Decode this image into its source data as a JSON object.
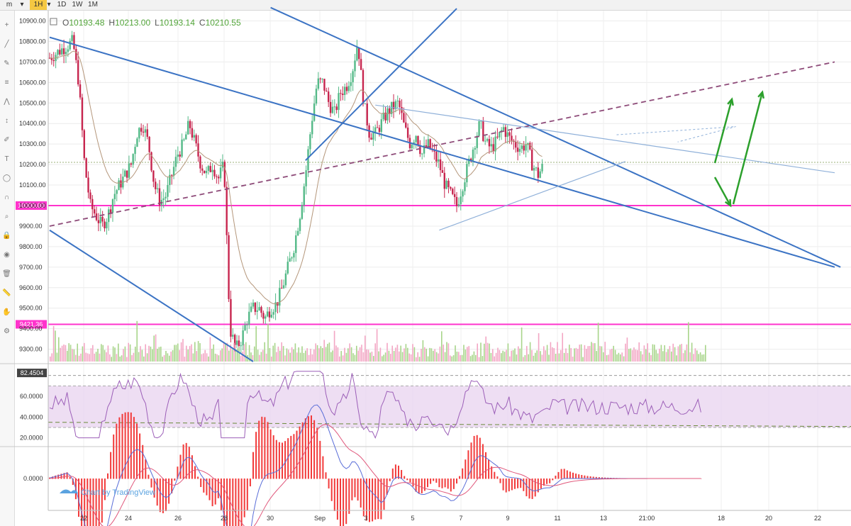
{
  "timeframes": [
    {
      "label": "m",
      "active": false
    },
    {
      "label": "1H",
      "active": true
    },
    {
      "label": "1D",
      "active": false
    },
    {
      "label": "1W",
      "active": false
    },
    {
      "label": "1M",
      "active": false
    }
  ],
  "toolbar_icons": [
    "crosshair-icon",
    "trendline-icon",
    "pencil-icon",
    "fibonacci-icon",
    "pattern-icon",
    "measure-icon",
    "brush-icon",
    "text-icon",
    "shapes-icon",
    "magnet-icon",
    "zoom-icon",
    "lock-icon",
    "eye-icon",
    "trash-icon",
    "ruler-icon",
    "hand-icon",
    "settings-icon"
  ],
  "ohlc": {
    "o_label": "O",
    "o_value": "10193.48",
    "h_label": "H",
    "h_value": "10213.00",
    "l_label": "L",
    "l_value": "10193.14",
    "c_label": "C",
    "c_value": "10210.55"
  },
  "watermark": "Chart by TradingView",
  "colors": {
    "bull": "#53b987",
    "bear": "#c7254e",
    "trend": "#3b73c4",
    "level": "#ff33cc",
    "rsi": "#9c5fb8",
    "rsi_band": "#ead6f0",
    "macd_hist": "#f23a3a",
    "arrow": "#2ca02c",
    "ma": "#b4967a",
    "dashed_trend": "#8e4b79"
  },
  "chart_data": {
    "type": "line",
    "description_series": "BTC/USD hourly candlesticks",
    "price_axis": {
      "ticks": [
        "10900.00",
        "10800.00",
        "10700.00",
        "10600.00",
        "10500.00",
        "10400.00",
        "10300.00",
        "10200.00",
        "10100.00",
        "10000.00",
        "9900.00",
        "9800.00",
        "9700.00",
        "9600.00",
        "9500.00",
        "9400.00",
        "9300.00"
      ],
      "range": [
        9240,
        10950
      ]
    },
    "x_ticks": [
      "22",
      "24",
      "26",
      "28",
      "30",
      "Sep",
      "3",
      "5",
      "7",
      "9",
      "11",
      "13",
      "21:00",
      "18",
      "20",
      "22"
    ],
    "levels": [
      {
        "label": "10000.00",
        "price": 10000
      },
      {
        "label": "9421.36",
        "price": 9421.36
      }
    ],
    "current_price_line": 10210.55,
    "price_path": [
      [
        0,
        10720
      ],
      [
        2,
        10760
      ],
      [
        4,
        10800
      ],
      [
        5,
        10600
      ],
      [
        6,
        10200
      ],
      [
        7,
        10000
      ],
      [
        8,
        9950
      ],
      [
        9,
        9900
      ],
      [
        10,
        9950
      ],
      [
        11,
        10050
      ],
      [
        12,
        10100
      ],
      [
        13,
        10150
      ],
      [
        14,
        10200
      ],
      [
        15,
        10350
      ],
      [
        16,
        10400
      ],
      [
        17,
        10300
      ],
      [
        18,
        10100
      ],
      [
        19,
        10020
      ],
      [
        20,
        10050
      ],
      [
        21,
        10150
      ],
      [
        22,
        10250
      ],
      [
        23,
        10300
      ],
      [
        24,
        10400
      ],
      [
        25,
        10300
      ],
      [
        26,
        10200
      ],
      [
        27,
        10150
      ],
      [
        28,
        10200
      ],
      [
        29,
        10130
      ],
      [
        30,
        10200
      ],
      [
        31,
        9400
      ],
      [
        32,
        9300
      ],
      [
        33,
        9350
      ],
      [
        34,
        9450
      ],
      [
        35,
        9500
      ],
      [
        36,
        9500
      ],
      [
        37,
        9450
      ],
      [
        38,
        9500
      ],
      [
        39,
        9520
      ],
      [
        40,
        9600
      ],
      [
        41,
        9700
      ],
      [
        42,
        9800
      ],
      [
        43,
        9950
      ],
      [
        44,
        10150
      ],
      [
        45,
        10400
      ],
      [
        46,
        10600
      ],
      [
        47,
        10600
      ],
      [
        48,
        10500
      ],
      [
        49,
        10450
      ],
      [
        50,
        10550
      ],
      [
        51,
        10580
      ],
      [
        52,
        10650
      ],
      [
        53,
        10800
      ],
      [
        54,
        10500
      ],
      [
        55,
        10350
      ],
      [
        56,
        10350
      ],
      [
        57,
        10400
      ],
      [
        58,
        10450
      ],
      [
        59,
        10480
      ],
      [
        60,
        10500
      ],
      [
        61,
        10380
      ],
      [
        62,
        10300
      ],
      [
        63,
        10350
      ],
      [
        64,
        10250
      ],
      [
        65,
        10300
      ],
      [
        66,
        10250
      ],
      [
        67,
        10200
      ],
      [
        68,
        10100
      ],
      [
        69,
        10050
      ],
      [
        70,
        10000
      ],
      [
        71,
        10100
      ],
      [
        72,
        10200
      ],
      [
        73,
        10300
      ],
      [
        74,
        10400
      ],
      [
        75,
        10300
      ],
      [
        76,
        10280
      ],
      [
        77,
        10320
      ],
      [
        78,
        10380
      ],
      [
        79,
        10330
      ],
      [
        80,
        10300
      ],
      [
        81,
        10280
      ],
      [
        82,
        10300
      ],
      [
        83,
        10200
      ],
      [
        84,
        10150
      ],
      [
        85,
        10200
      ]
    ],
    "trendlines": [
      {
        "name": "upper-channel",
        "color": "#3b73c4",
        "p1": [
          0,
          10820
        ],
        "p2": [
          135,
          9700
        ]
      },
      {
        "name": "lower-channel",
        "color": "#3b73c4",
        "p1": [
          0,
          9880
        ],
        "p2": [
          35,
          9240
        ]
      },
      {
        "name": "second-channel",
        "color": "#3b73c4",
        "p1": [
          38,
          10965
        ],
        "p2": [
          136,
          9700
        ]
      },
      {
        "name": "rising-line",
        "color": "#3b73c4",
        "p1": [
          44,
          10220
        ],
        "p2": [
          70,
          10960
        ]
      },
      {
        "name": "dashed-resistance",
        "color": "#8e4b79",
        "p1": [
          0,
          9900
        ],
        "p2": [
          135,
          10700
        ]
      },
      {
        "name": "triangle-top",
        "color": "#8fb0d9",
        "p1": [
          56,
          10490
        ],
        "p2": [
          135,
          10160
        ]
      },
      {
        "name": "triangle-bottom",
        "color": "#8fb0d9",
        "p1": [
          67,
          9880
        ],
        "p2": [
          99,
          10215
        ]
      }
    ],
    "rsi": {
      "label": "82.4504",
      "ticks": [
        "60.0000",
        "40.0000",
        "20.0000"
      ],
      "range": [
        15,
        90
      ],
      "band": [
        30,
        70
      ],
      "dashed_levels": [
        80,
        35
      ]
    },
    "macd": {
      "ticks": [
        "0.0000"
      ]
    }
  }
}
